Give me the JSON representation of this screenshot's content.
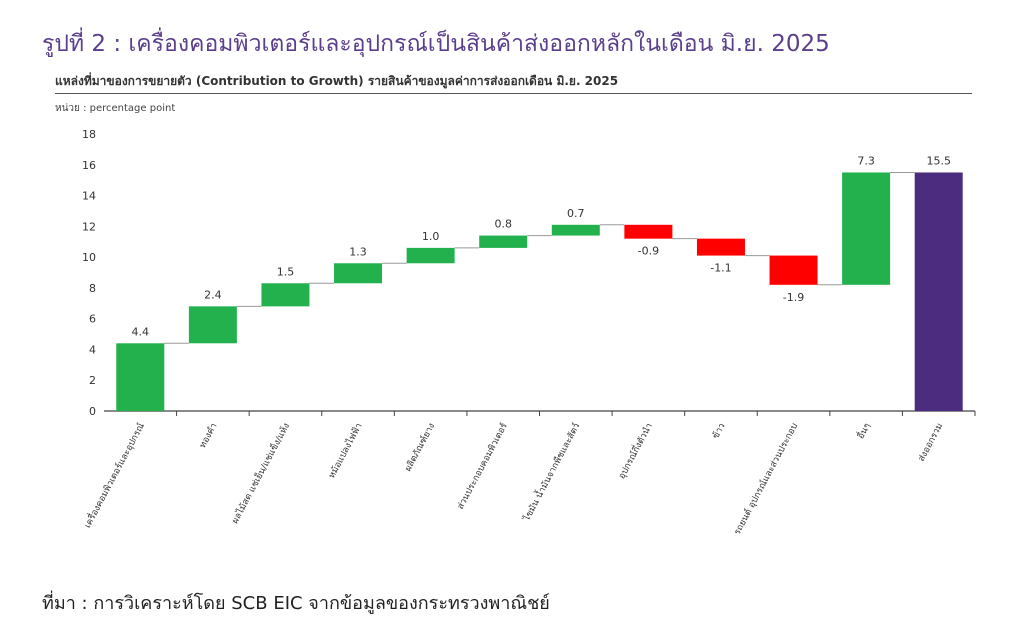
{
  "figure_title": "รูปที่ 2 : เครื่องคอมพิวเตอร์และอุปกรณ์เป็นสินค้าส่งออกหลักในเดือน มิ.ย. 2025",
  "chart_title": "แหล่งที่มาของการขยายตัว (Contribution to Growth) รายสินค้าของมูลค่าการส่งออกเดือน มิ.ย. 2025",
  "unit_label": "หน่วย : percentage point",
  "source": "ที่มา : การวิเคราะห์โดย SCB EIC จากข้อมูลของกระทรวงพาณิชย์",
  "colors": {
    "positive": "#22b14c",
    "negative": "#ff0000",
    "total": "#4b2c7e"
  },
  "chart_data": {
    "type": "bar",
    "subtype": "waterfall",
    "categories": [
      "เครื่องคอมพิวเตอร์และอุปกรณ์",
      "ทองคำ",
      "ผลไม้สด แช่เย็น/แช่แข็ง/แห้ง",
      "หม้อแปลงไฟฟ้า",
      "ผลิตภัณฑ์ยาง",
      "ส่วนประกอบคอมพิวเตอร์",
      "ไขมัน น้ำมันจากพืชและสัตว์",
      "อุปกรณ์กึ่งตัวนำ",
      "ข้าว",
      "รถยนต์ อุปกรณ์และส่วนประกอบ",
      "อื่นๆ",
      "ส่งออกรวม"
    ],
    "values": [
      4.4,
      2.4,
      1.5,
      1.3,
      1.0,
      0.8,
      0.7,
      -0.9,
      -1.1,
      -1.9,
      7.3,
      15.5
    ],
    "value_labels": [
      "4.4",
      "2.4",
      "1.5",
      "1.3",
      "1.0",
      "0.8",
      "0.7",
      "-0.9",
      "-1.1",
      "-1.9",
      "7.3",
      "15.5"
    ],
    "total_index": 11,
    "ylim": [
      0,
      18
    ],
    "yticks": [
      "0",
      "2",
      "4",
      "6",
      "8",
      "10",
      "12",
      "14",
      "16",
      "18"
    ],
    "grid": false
  }
}
